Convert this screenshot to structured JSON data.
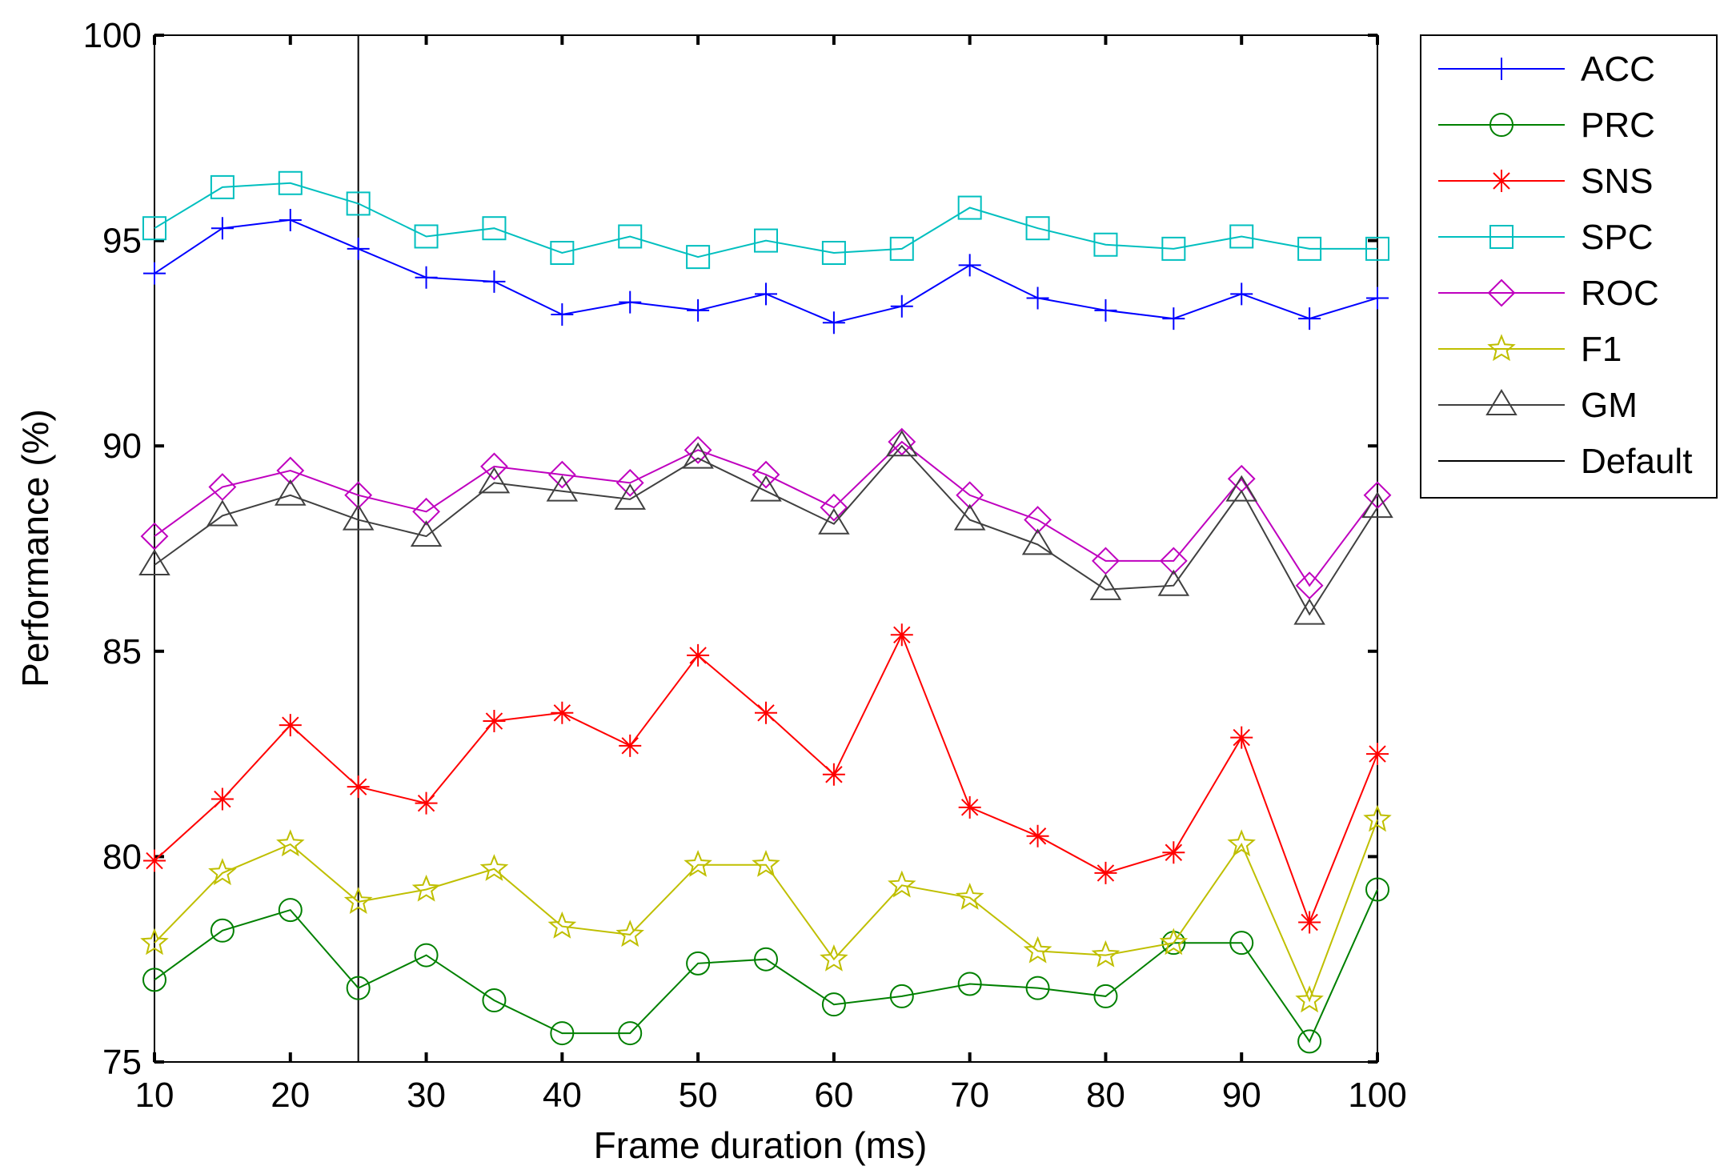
{
  "chart_data": {
    "type": "line",
    "title": "",
    "xlabel": "Frame duration (ms)",
    "ylabel": "Performance (%)",
    "xlim": [
      10,
      100
    ],
    "ylim": [
      75,
      100
    ],
    "xticks": [
      10,
      20,
      30,
      40,
      50,
      60,
      70,
      80,
      90,
      100
    ],
    "yticks": [
      75,
      80,
      85,
      90,
      95,
      100
    ],
    "grid": false,
    "legend_position": "outside-right",
    "x": [
      10,
      15,
      20,
      25,
      30,
      35,
      40,
      45,
      50,
      55,
      60,
      65,
      70,
      75,
      80,
      85,
      90,
      95,
      100
    ],
    "series": [
      {
        "name": "ACC",
        "color": "#0000ff",
        "marker": "plus",
        "values": [
          94.2,
          95.3,
          95.5,
          94.8,
          94.1,
          94.0,
          93.2,
          93.5,
          93.3,
          93.7,
          93.0,
          93.4,
          94.4,
          93.6,
          93.3,
          93.1,
          93.7,
          93.1,
          93.6
        ]
      },
      {
        "name": "PRC",
        "color": "#008000",
        "marker": "circle",
        "values": [
          77.0,
          78.2,
          78.7,
          76.8,
          77.6,
          76.5,
          75.7,
          75.7,
          77.4,
          77.5,
          76.4,
          76.6,
          76.9,
          76.8,
          76.6,
          77.9,
          77.9,
          75.5,
          79.2
        ]
      },
      {
        "name": "SNS",
        "color": "#ff0000",
        "marker": "asterisk",
        "values": [
          79.9,
          81.4,
          83.2,
          81.7,
          81.3,
          83.3,
          83.5,
          82.7,
          84.9,
          83.5,
          82.0,
          85.4,
          81.2,
          80.5,
          79.6,
          80.1,
          82.9,
          78.4,
          82.5
        ]
      },
      {
        "name": "SPC",
        "color": "#00bfbf",
        "marker": "square",
        "values": [
          95.3,
          96.3,
          96.4,
          95.9,
          95.1,
          95.3,
          94.7,
          95.1,
          94.6,
          95.0,
          94.7,
          94.8,
          95.8,
          95.3,
          94.9,
          94.8,
          95.1,
          94.8,
          94.8
        ]
      },
      {
        "name": "ROC",
        "color": "#bf00bf",
        "marker": "diamond",
        "values": [
          87.8,
          89.0,
          89.4,
          88.8,
          88.4,
          89.5,
          89.3,
          89.1,
          89.9,
          89.3,
          88.5,
          90.1,
          88.8,
          88.2,
          87.2,
          87.2,
          89.2,
          86.6,
          88.8
        ]
      },
      {
        "name": "F1",
        "color": "#bfbf00",
        "marker": "star",
        "values": [
          77.9,
          79.6,
          80.3,
          78.9,
          79.2,
          79.7,
          78.3,
          78.1,
          79.8,
          79.8,
          77.5,
          79.3,
          79.0,
          77.7,
          77.6,
          77.9,
          80.3,
          76.5,
          80.9
        ]
      },
      {
        "name": "GM",
        "color": "#404040",
        "marker": "triangle",
        "values": [
          87.1,
          88.3,
          88.8,
          88.2,
          87.8,
          89.1,
          88.9,
          88.7,
          89.7,
          88.9,
          88.1,
          90.0,
          88.2,
          87.6,
          86.5,
          86.6,
          88.9,
          85.9,
          88.5
        ]
      }
    ],
    "reference_lines": [
      {
        "name": "Default",
        "color": "#000000",
        "orientation": "vertical",
        "x": 25
      }
    ]
  }
}
